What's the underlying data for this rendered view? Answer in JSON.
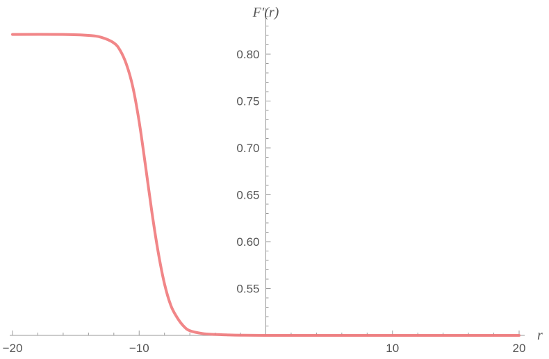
{
  "chart_data": {
    "type": "line",
    "title": "",
    "xlabel": "r",
    "ylabel": "F′(r)",
    "xlim": [
      -20,
      20
    ],
    "ylim": [
      0.5,
      0.84
    ],
    "x_ticks": [
      -20,
      -10,
      10,
      20
    ],
    "x_tick_labels": [
      "−20",
      "−10",
      "10",
      "20"
    ],
    "y_ticks": [
      0.55,
      0.6,
      0.65,
      0.7,
      0.75,
      0.8
    ],
    "y_tick_labels": [
      "0.55",
      "0.60",
      "0.65",
      "0.70",
      "0.75",
      "0.80"
    ],
    "grid": false,
    "colors": {
      "curve": "#f0797b",
      "axis": "#9a9a9a",
      "text": "#555555"
    },
    "series": [
      {
        "x": [
          -20,
          -16,
          -14,
          -13,
          -12,
          -11.5,
          -11,
          -10.5,
          -10,
          -9.5,
          -9,
          -8.5,
          -8,
          -7.5,
          -7,
          -6.5,
          -6,
          -5,
          -4,
          -3,
          -2,
          0,
          5,
          10,
          20
        ],
        "y": [
          0.821,
          0.821,
          0.82,
          0.818,
          0.812,
          0.804,
          0.789,
          0.765,
          0.728,
          0.681,
          0.632,
          0.589,
          0.555,
          0.532,
          0.519,
          0.51,
          0.505,
          0.502,
          0.501,
          0.5005,
          0.5002,
          0.5,
          0.5,
          0.5,
          0.5
        ]
      }
    ]
  }
}
